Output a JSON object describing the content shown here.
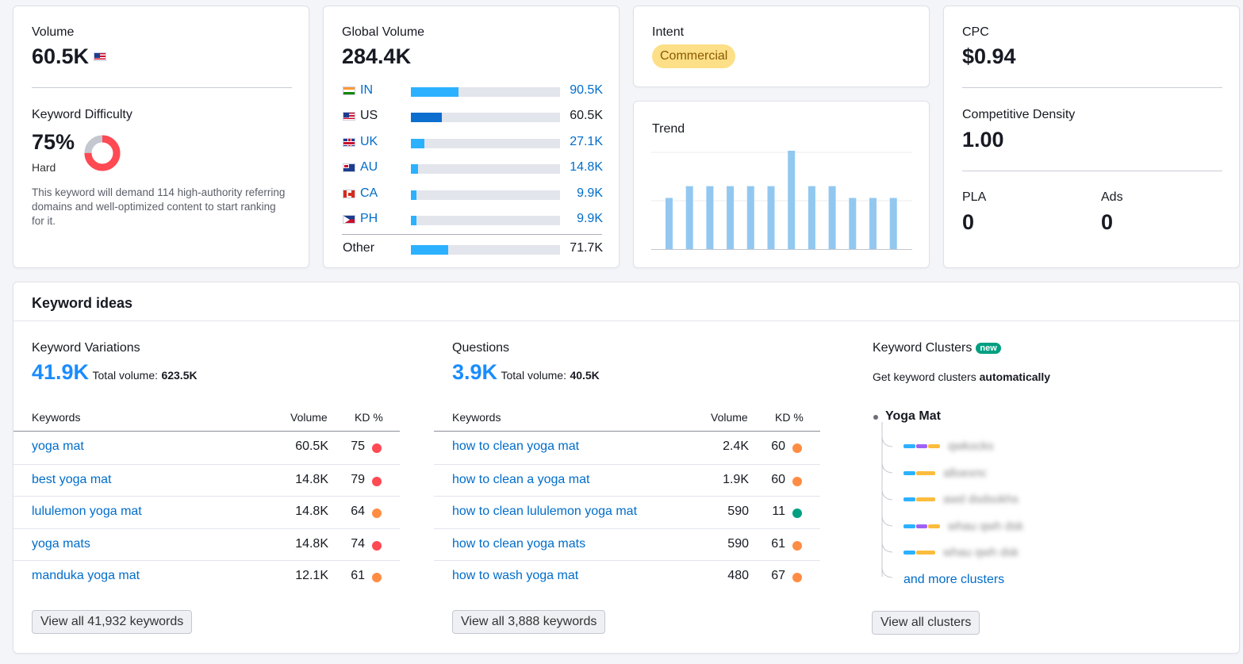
{
  "volume": {
    "label": "Volume",
    "value": "60.5K",
    "flag": "us-flag-icon"
  },
  "kd": {
    "label": "Keyword Difficulty",
    "value": "75%",
    "level": "Hard",
    "percent": 75,
    "description": "This keyword will demand 114 high-authority referring domains and well-optimized content to start ranking for it."
  },
  "global": {
    "label": "Global Volume",
    "value": "284.4K",
    "rows": [
      {
        "code": "IN",
        "value": "90.5K",
        "fraction": 0.32,
        "link": true
      },
      {
        "code": "US",
        "value": "60.5K",
        "fraction": 0.21,
        "link": false
      },
      {
        "code": "UK",
        "value": "27.1K",
        "fraction": 0.09,
        "link": true
      },
      {
        "code": "AU",
        "value": "14.8K",
        "fraction": 0.05,
        "link": true
      },
      {
        "code": "CA",
        "value": "9.9K",
        "fraction": 0.035,
        "link": true
      },
      {
        "code": "PH",
        "value": "9.9K",
        "fraction": 0.035,
        "link": true
      }
    ],
    "other": {
      "label": "Other",
      "value": "71.7K",
      "fraction": 0.25
    }
  },
  "intent": {
    "label": "Intent",
    "value": "Commercial"
  },
  "trend": {
    "label": "Trend",
    "values": [
      0.52,
      0.64,
      0.64,
      0.64,
      0.64,
      0.64,
      1.0,
      0.64,
      0.64,
      0.52,
      0.52,
      0.52
    ]
  },
  "cpc": {
    "label": "CPC",
    "value": "$0.94"
  },
  "density": {
    "label": "Competitive Density",
    "value": "1.00"
  },
  "pla": {
    "label": "PLA",
    "value": "0"
  },
  "ads": {
    "label": "Ads",
    "value": "0"
  },
  "ideas": {
    "title": "Keyword ideas",
    "variations": {
      "title": "Keyword Variations",
      "count": "41.9K",
      "total_label": "Total volume:",
      "total": "623.5K",
      "col_keywords": "Keywords",
      "col_volume": "Volume",
      "col_kd": "KD %",
      "rows": [
        {
          "kw": "yoga mat",
          "vol": "60.5K",
          "kd": "75",
          "color": "#ff4953"
        },
        {
          "kw": "best yoga mat",
          "vol": "14.8K",
          "kd": "79",
          "color": "#ff4953"
        },
        {
          "kw": "lululemon yoga mat",
          "vol": "14.8K",
          "kd": "64",
          "color": "#ff8c43"
        },
        {
          "kw": "yoga mats",
          "vol": "14.8K",
          "kd": "74",
          "color": "#ff4953"
        },
        {
          "kw": "manduka yoga mat",
          "vol": "12.1K",
          "kd": "61",
          "color": "#ff8c43"
        }
      ],
      "button": "View all 41,932 keywords"
    },
    "questions": {
      "title": "Questions",
      "count": "3.9K",
      "total_label": "Total volume:",
      "total": "40.5K",
      "col_keywords": "Keywords",
      "col_volume": "Volume",
      "col_kd": "KD %",
      "rows": [
        {
          "kw": "how to clean yoga mat",
          "vol": "2.4K",
          "kd": "60",
          "color": "#ff8c43"
        },
        {
          "kw": "how to clean a yoga mat",
          "vol": "1.9K",
          "kd": "60",
          "color": "#ff8c43"
        },
        {
          "kw": "how to clean lululemon yoga mat",
          "vol": "590",
          "kd": "11",
          "color": "#009f81"
        },
        {
          "kw": "how to clean yoga mats",
          "vol": "590",
          "kd": "61",
          "color": "#ff8c43"
        },
        {
          "kw": "how to wash yoga mat",
          "vol": "480",
          "kd": "67",
          "color": "#ff8c43"
        }
      ],
      "button": "View all 3,888 keywords"
    },
    "clusters": {
      "title": "Keyword Clusters",
      "badge": "new",
      "subtitle_plain": "Get keyword clusters ",
      "subtitle_bold": "automatically",
      "root": "Yoga Mat",
      "items": [
        "qwkocks",
        "alloexnc",
        "awd dsdsokhs",
        "whau qwh dsk",
        "whau qwh dsk"
      ],
      "more": "and more clusters",
      "button": "View all clusters"
    }
  }
}
